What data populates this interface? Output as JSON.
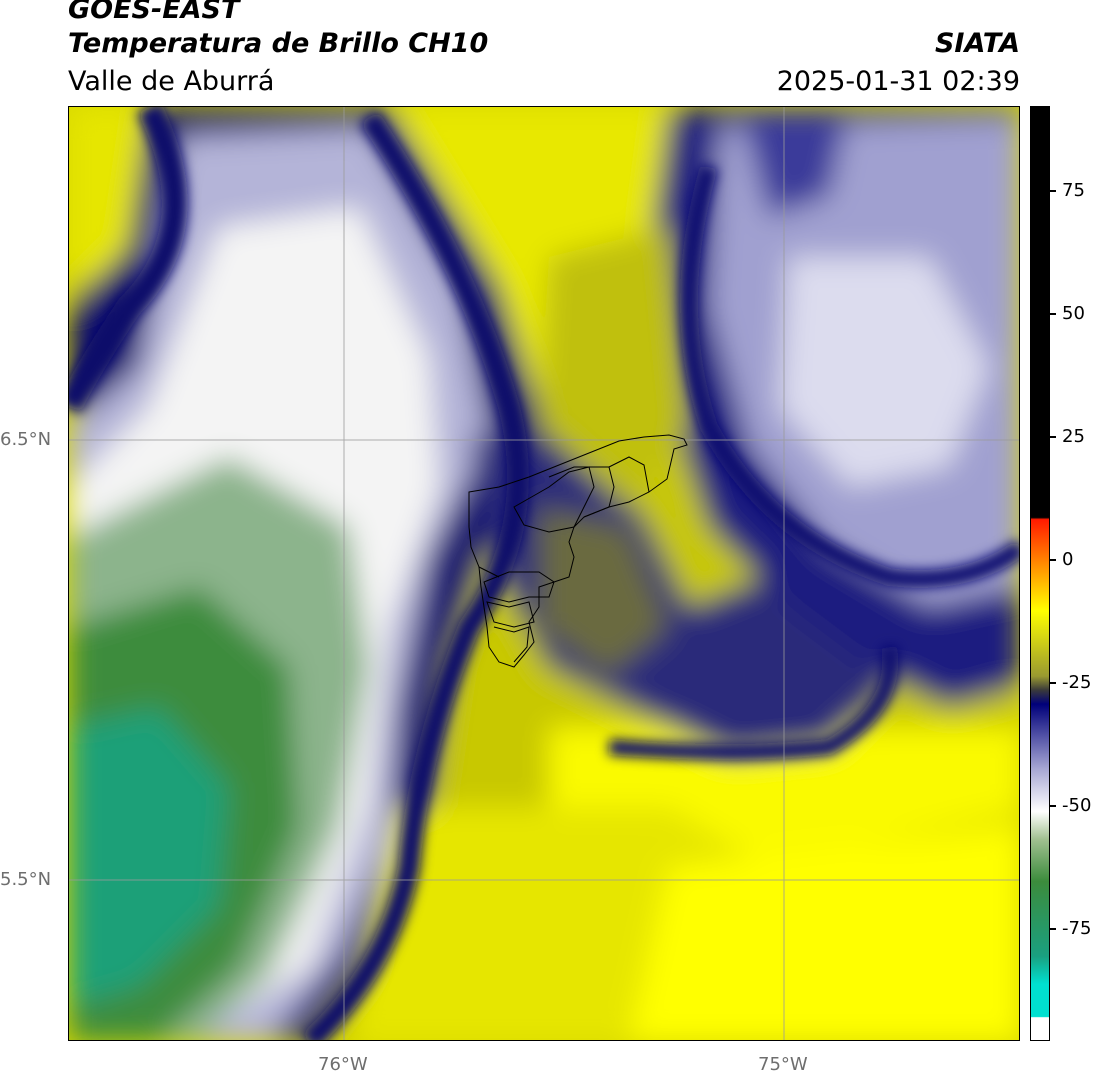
{
  "header": {
    "satellite": "GOES-EAST",
    "product": "Temperatura de Brillo CH10",
    "region": "Valle de Aburrá",
    "org": "SIATA",
    "datetime": "2025-01-31 02:39"
  },
  "map": {
    "lat_labels": [
      "6.5°N",
      "5.5°N"
    ],
    "lon_labels": [
      "76°W",
      "75°W"
    ]
  },
  "colorbar": {
    "ticks": [
      {
        "value": 75,
        "label": "75"
      },
      {
        "value": 50,
        "label": "50"
      },
      {
        "value": 25,
        "label": "25"
      },
      {
        "value": 0,
        "label": "0"
      },
      {
        "value": -25,
        "label": "-25"
      },
      {
        "value": -50,
        "label": "-50"
      },
      {
        "value": -75,
        "label": "-75"
      }
    ],
    "colors": {
      "black": "#000000",
      "red": "#ff1a00",
      "orange": "#ff8c00",
      "yellow": "#ffff00",
      "olive": "#9a9a30",
      "navy": "#00007a",
      "lavender": "#a8a8d4",
      "white": "#ffffff",
      "green": "#3c8c3c",
      "teal": "#00e0d0"
    }
  }
}
